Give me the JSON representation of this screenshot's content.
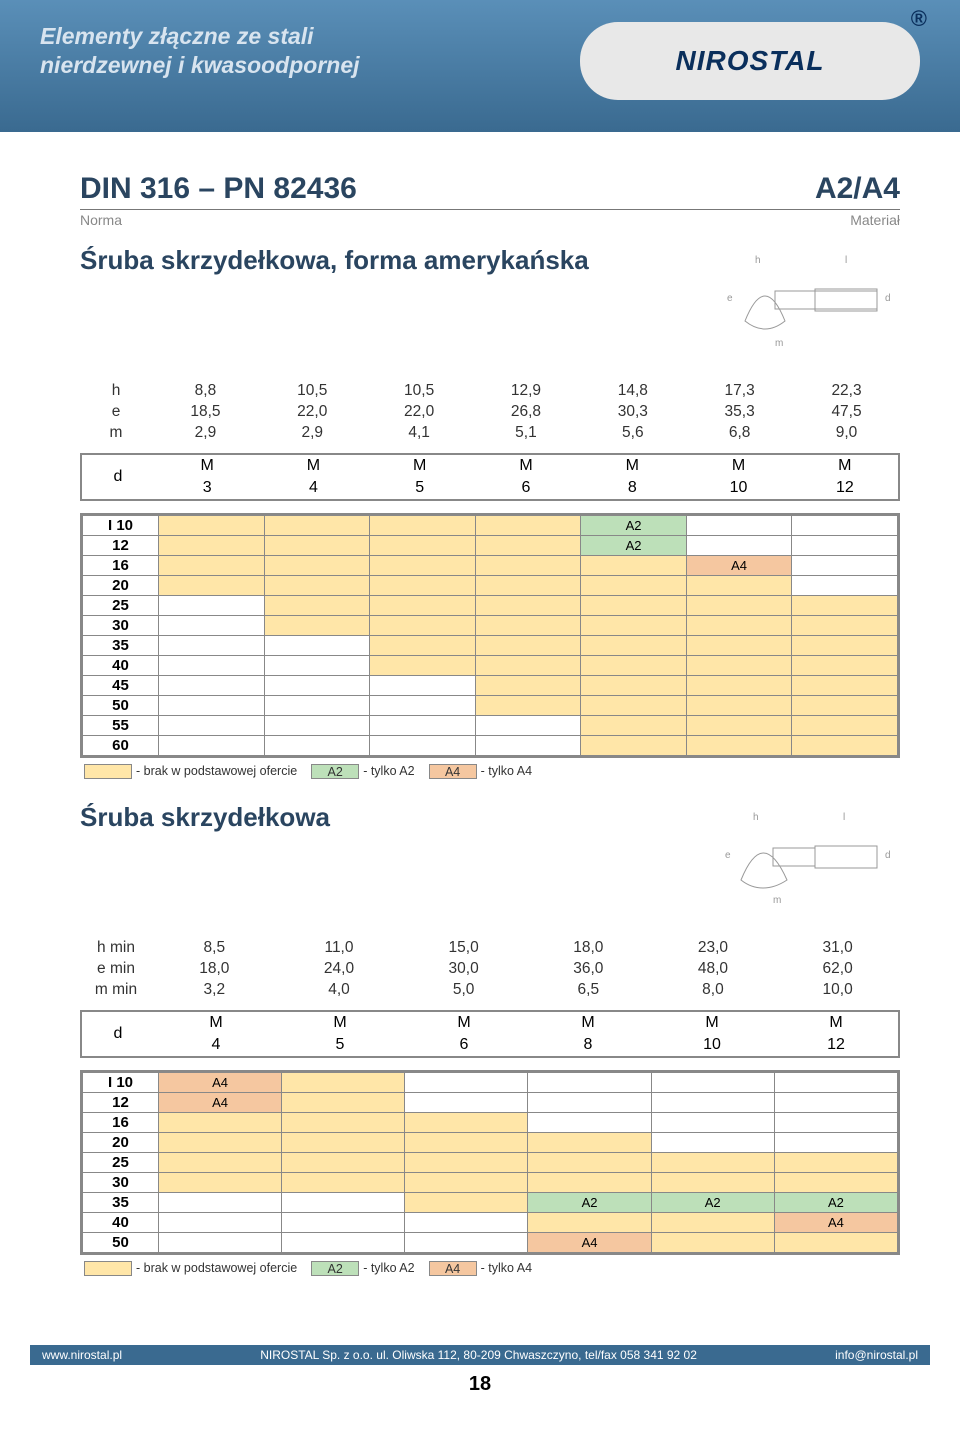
{
  "header": {
    "line1": "Elementy złączne ze stali",
    "line2": "nierdzewnej i kwasoodpornej",
    "logo_text": "NIROSTAL"
  },
  "section1": {
    "norm_code": "DIN 316 – PN 82436",
    "material_code": "A2/A4",
    "norm_label": "Norma",
    "material_label": "Materiał",
    "product_title": "Śruba skrzydełkowa, forma amerykańska",
    "dims": {
      "labels": [
        "h",
        "e",
        "m"
      ],
      "rows": [
        [
          "8,8",
          "10,5",
          "10,5",
          "12,9",
          "14,8",
          "17,3",
          "22,3"
        ],
        [
          "18,5",
          "22,0",
          "22,0",
          "26,8",
          "30,3",
          "35,3",
          "47,5"
        ],
        [
          "2,9",
          "2,9",
          "4,1",
          "5,1",
          "5,6",
          "6,8",
          "9,0"
        ]
      ]
    },
    "d_label": "d",
    "d_cols": [
      [
        "M",
        "3"
      ],
      [
        "M",
        "4"
      ],
      [
        "M",
        "5"
      ],
      [
        "M",
        "6"
      ],
      [
        "M",
        "8"
      ],
      [
        "M",
        "10"
      ],
      [
        "M",
        "12"
      ]
    ],
    "avail": {
      "lengths": [
        "I  10",
        "12",
        "16",
        "20",
        "25",
        "30",
        "35",
        "40",
        "45",
        "50",
        "55",
        "60"
      ],
      "grid": [
        [
          "std",
          "std",
          "std",
          "std",
          "a2",
          "",
          ""
        ],
        [
          "std",
          "std",
          "std",
          "std",
          "a2",
          "",
          ""
        ],
        [
          "std",
          "std",
          "std",
          "std",
          "std",
          "a4",
          ""
        ],
        [
          "std",
          "std",
          "std",
          "std",
          "std",
          "std",
          ""
        ],
        [
          "",
          "std",
          "std",
          "std",
          "std",
          "std",
          "std"
        ],
        [
          "",
          "std",
          "std",
          "std",
          "std",
          "std",
          "std"
        ],
        [
          "",
          "",
          "std",
          "std",
          "std",
          "std",
          "std"
        ],
        [
          "",
          "",
          "std",
          "std",
          "std",
          "std",
          "std"
        ],
        [
          "",
          "",
          "",
          "std",
          "std",
          "std",
          "std"
        ],
        [
          "",
          "",
          "",
          "std",
          "std",
          "std",
          "std"
        ],
        [
          "",
          "",
          "",
          "",
          "std",
          "std",
          "std"
        ],
        [
          "",
          "",
          "",
          "",
          "std",
          "std",
          "std"
        ]
      ],
      "cell_text": {
        "a2": "A2",
        "a4": "A4"
      }
    }
  },
  "section2": {
    "product_title": "Śruba skrzydełkowa",
    "dims": {
      "labels": [
        "h min",
        "e min",
        "m min"
      ],
      "rows": [
        [
          "8,5",
          "11,0",
          "15,0",
          "18,0",
          "23,0",
          "31,0"
        ],
        [
          "18,0",
          "24,0",
          "30,0",
          "36,0",
          "48,0",
          "62,0"
        ],
        [
          "3,2",
          "4,0",
          "5,0",
          "6,5",
          "8,0",
          "10,0"
        ]
      ]
    },
    "d_label": "d",
    "d_cols": [
      [
        "M",
        "4"
      ],
      [
        "M",
        "5"
      ],
      [
        "M",
        "6"
      ],
      [
        "M",
        "8"
      ],
      [
        "M",
        "10"
      ],
      [
        "M",
        "12"
      ]
    ],
    "avail": {
      "lengths": [
        "I  10",
        "12",
        "16",
        "20",
        "25",
        "30",
        "35",
        "40",
        "50"
      ],
      "grid": [
        [
          "a4",
          "std",
          "",
          "",
          "",
          ""
        ],
        [
          "a4",
          "std",
          "",
          "",
          "",
          ""
        ],
        [
          "std",
          "std",
          "std",
          "",
          "",
          ""
        ],
        [
          "std",
          "std",
          "std",
          "std",
          "",
          ""
        ],
        [
          "std",
          "std",
          "std",
          "std",
          "std",
          "std"
        ],
        [
          "std",
          "std",
          "std",
          "std",
          "std",
          "std"
        ],
        [
          "",
          "",
          "std",
          "a2",
          "a2",
          "a2"
        ],
        [
          "",
          "",
          "",
          "std",
          "std",
          "a4"
        ],
        [
          "",
          "",
          "",
          "a4",
          "std",
          "std"
        ]
      ],
      "cell_text": {
        "a2": "A2",
        "a4": "A4"
      }
    }
  },
  "legend": {
    "std_text": "- brak w podstawowej ofercie",
    "a2_text": "- tylko A2",
    "a4_text": "- tylko A4",
    "a2_sw": "A2",
    "a4_sw": "A4",
    "colors": {
      "std": "#ffe6a8",
      "a2": "#bde0b9",
      "a4": "#f5c7a0"
    }
  },
  "footer": {
    "url": "www.nirostal.pl",
    "mid": "NIROSTAL Sp. z o.o.  ul. Oliwska 112, 80-209 Chwaszczyno, tel/fax 058 341 92 02",
    "email": "info@nirostal.pl",
    "page": "18"
  }
}
